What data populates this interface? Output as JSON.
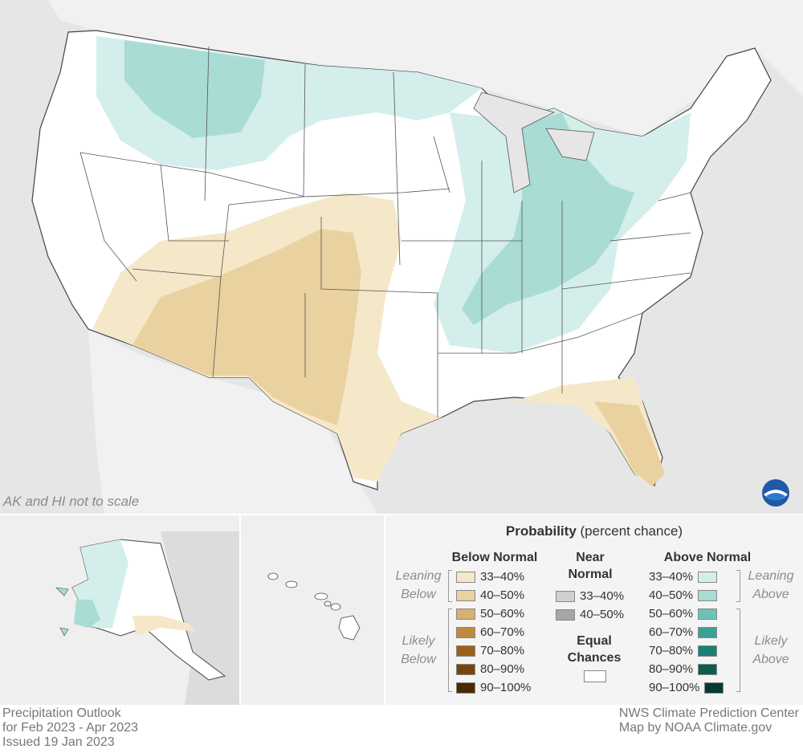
{
  "map": {
    "scale_note": "AK and HI not to scale",
    "logo_text": "NOAA"
  },
  "legend": {
    "title_bold": "Probability",
    "title_rest": " (percent chance)",
    "below": {
      "heading": "Below Normal",
      "leaning_label": "Leaning Below",
      "likely_label": "Likely Below",
      "rows": [
        {
          "label": "33–40%",
          "color": "#f5e8c8"
        },
        {
          "label": "40–50%",
          "color": "#ead1a0"
        },
        {
          "label": "50–60%",
          "color": "#d7b172"
        },
        {
          "label": "60–70%",
          "color": "#c08a3e"
        },
        {
          "label": "70–80%",
          "color": "#9c5f1d"
        },
        {
          "label": "80–90%",
          "color": "#7a4210"
        },
        {
          "label": "90–100%",
          "color": "#4d2806"
        }
      ]
    },
    "near": {
      "heading_line1": "Near",
      "heading_line2": "Normal",
      "rows": [
        {
          "label": "33–40%",
          "color": "#cfcfcf"
        },
        {
          "label": "40–50%",
          "color": "#a6a6a6"
        }
      ],
      "equal_line1": "Equal",
      "equal_line2": "Chances",
      "equal_color": "#ffffff"
    },
    "above": {
      "heading": "Above Normal",
      "leaning_label": "Leaning Above",
      "likely_label": "Likely Above",
      "rows": [
        {
          "label": "33–40%",
          "color": "#d4eeeb"
        },
        {
          "label": "40–50%",
          "color": "#a8dcd5"
        },
        {
          "label": "50–60%",
          "color": "#6cc2b6"
        },
        {
          "label": "60–70%",
          "color": "#3aa195"
        },
        {
          "label": "70–80%",
          "color": "#1b7f74"
        },
        {
          "label": "80–90%",
          "color": "#0c5c52"
        },
        {
          "label": "90–100%",
          "color": "#053a34"
        }
      ]
    }
  },
  "footer": {
    "left_line1": "Precipitation Outlook",
    "left_line2": "for Feb 2023 - Apr 2023",
    "left_line3": "Issued 19 Jan 2023",
    "right_line1": "NWS Climate Prediction Center",
    "right_line2": "Map by NOAA Climate.gov"
  }
}
